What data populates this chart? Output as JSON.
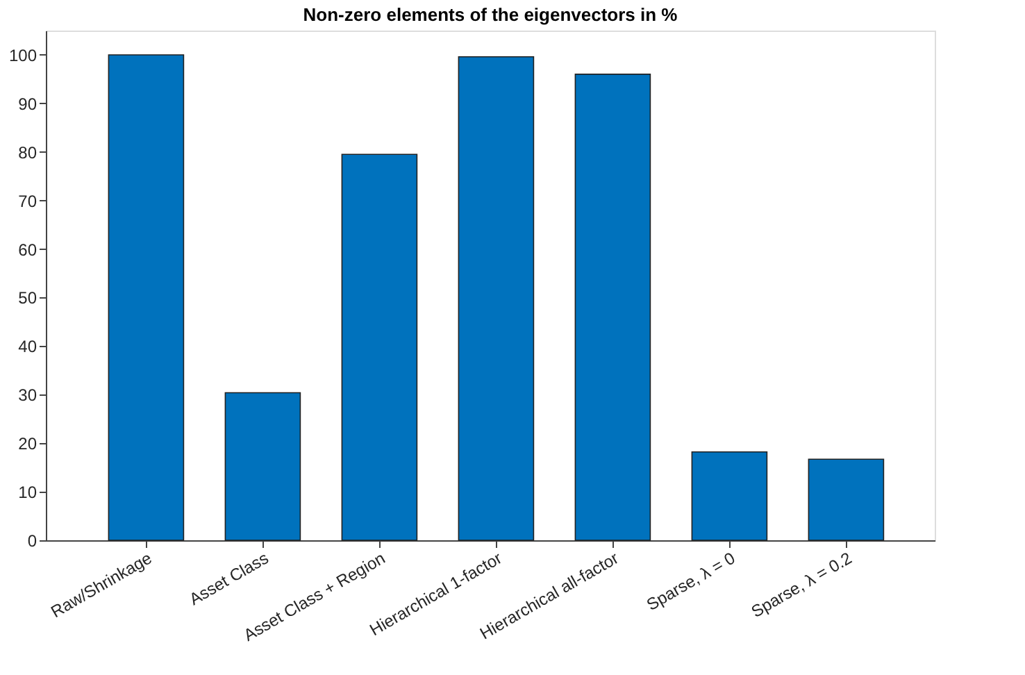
{
  "chart_data": {
    "type": "bar",
    "title": "Non-zero elements of the eigenvectors in %",
    "categories": [
      "Raw/Shrinkage",
      "Asset Class",
      "Asset Class + Region",
      "Hierarchical 1-factor",
      "Hierarchical all-factor",
      "Sparse, λ = 0",
      "Sparse, λ = 0.2"
    ],
    "values": [
      100,
      30.4,
      79.5,
      99.6,
      96,
      18.2,
      16.7
    ],
    "color": "#0072bd",
    "ylim": [
      0,
      105
    ],
    "yticks": [
      0,
      10,
      20,
      30,
      40,
      50,
      60,
      70,
      80,
      90,
      100
    ],
    "grid": false,
    "legend": false
  }
}
